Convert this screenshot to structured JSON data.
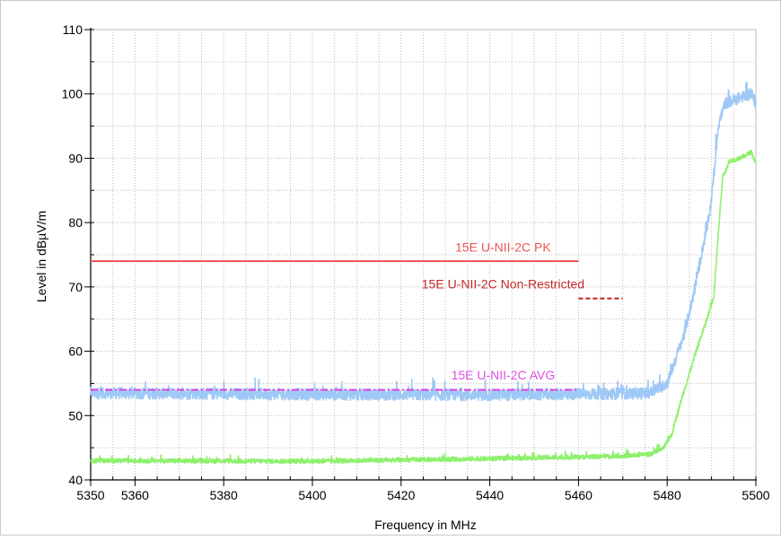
{
  "chart_data": {
    "type": "line",
    "title": "",
    "xlabel": "Frequency in MHz",
    "ylabel": "Level in dBµV/m",
    "xlim": [
      5350,
      5500
    ],
    "ylim": [
      40,
      110
    ],
    "x_ticks": [
      5350,
      5360,
      5380,
      5400,
      5420,
      5440,
      5460,
      5480,
      5500
    ],
    "x_minor_step": 5,
    "y_ticks": [
      40,
      50,
      60,
      70,
      80,
      90,
      100,
      110
    ],
    "y_minor_step": 5,
    "grid": true,
    "grid_style": "dotted",
    "series": [
      {
        "color": "#9ec8f5",
        "noise": 0.9,
        "points": [
          [
            5350,
            53.5
          ],
          [
            5400,
            53.3
          ],
          [
            5440,
            53.2
          ],
          [
            5470,
            53.4
          ],
          [
            5476,
            53.5
          ],
          [
            5480,
            55
          ],
          [
            5482,
            59
          ],
          [
            5484,
            63
          ],
          [
            5486,
            69
          ],
          [
            5488,
            76
          ],
          [
            5489.5,
            81
          ],
          [
            5490.5,
            87
          ],
          [
            5491.5,
            95
          ],
          [
            5493,
            98.5
          ],
          [
            5496,
            99.3
          ],
          [
            5499,
            100
          ],
          [
            5500,
            98.5
          ]
        ]
      },
      {
        "color": "#8ef06e",
        "noise": 0.35,
        "points": [
          [
            5350,
            43
          ],
          [
            5400,
            42.9
          ],
          [
            5440,
            43.3
          ],
          [
            5470,
            43.7
          ],
          [
            5476,
            44.0
          ],
          [
            5479,
            44.8
          ],
          [
            5481,
            47
          ],
          [
            5483,
            52
          ],
          [
            5485,
            56.5
          ],
          [
            5487,
            61
          ],
          [
            5489,
            65
          ],
          [
            5490.5,
            68.5
          ],
          [
            5491.5,
            78
          ],
          [
            5492.5,
            87
          ],
          [
            5494,
            89.5
          ],
          [
            5497,
            90.2
          ],
          [
            5499,
            91
          ],
          [
            5500,
            89
          ]
        ]
      }
    ],
    "limit_lines": [
      {
        "label": "15E U-NII-2C PK",
        "color": "#f05050",
        "style": "solid",
        "x": [
          5350,
          5460
        ],
        "y": 74,
        "label_x": 5443,
        "label_y": 75.5,
        "label_color": "#ee5555"
      },
      {
        "label": "15E U-NII-2C AVG",
        "color": "#e040e0",
        "style": "dashdot",
        "x": [
          5350,
          5460
        ],
        "y": 54,
        "label_x": 5443,
        "label_y": 55.6,
        "label_color": "#e050e0"
      },
      {
        "label": "15E U-NII-2C Non-Restricted",
        "color": "#c02020",
        "style": "dashed",
        "x": [
          5460,
          5470
        ],
        "y": 68.2,
        "label_x": 5443,
        "label_y": 69.8,
        "label_color": "#c62828"
      }
    ]
  }
}
